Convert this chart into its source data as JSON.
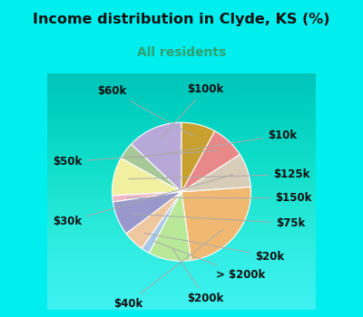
{
  "title": "Income distribution in Clyde, KS (%)",
  "subtitle": "All residents",
  "bg_color": "#00EEEE",
  "chart_bg_grad_top": "#e8f5f0",
  "chart_bg_grad_bot": "#d0ede0",
  "labels": [
    "$100k",
    "$10k",
    "$125k",
    "$150k",
    "$75k",
    "$20k",
    "> $200k",
    "$200k",
    "$40k",
    "$30k",
    "$50k",
    "$60k"
  ],
  "values": [
    13,
    4,
    9,
    1.5,
    8,
    5,
    2,
    10,
    24,
    8,
    8,
    8
  ],
  "colors": [
    "#b8a8d8",
    "#a8c898",
    "#f0f0a0",
    "#f0b8c8",
    "#9898cc",
    "#f0c8a0",
    "#a8c8e8",
    "#b8e898",
    "#f0b870",
    "#d8cdb8",
    "#e88888",
    "#c8a030"
  ],
  "title_fontsize": 11.5,
  "subtitle_fontsize": 10,
  "label_fontsize": 8.5,
  "subtitle_color": "#30a070"
}
